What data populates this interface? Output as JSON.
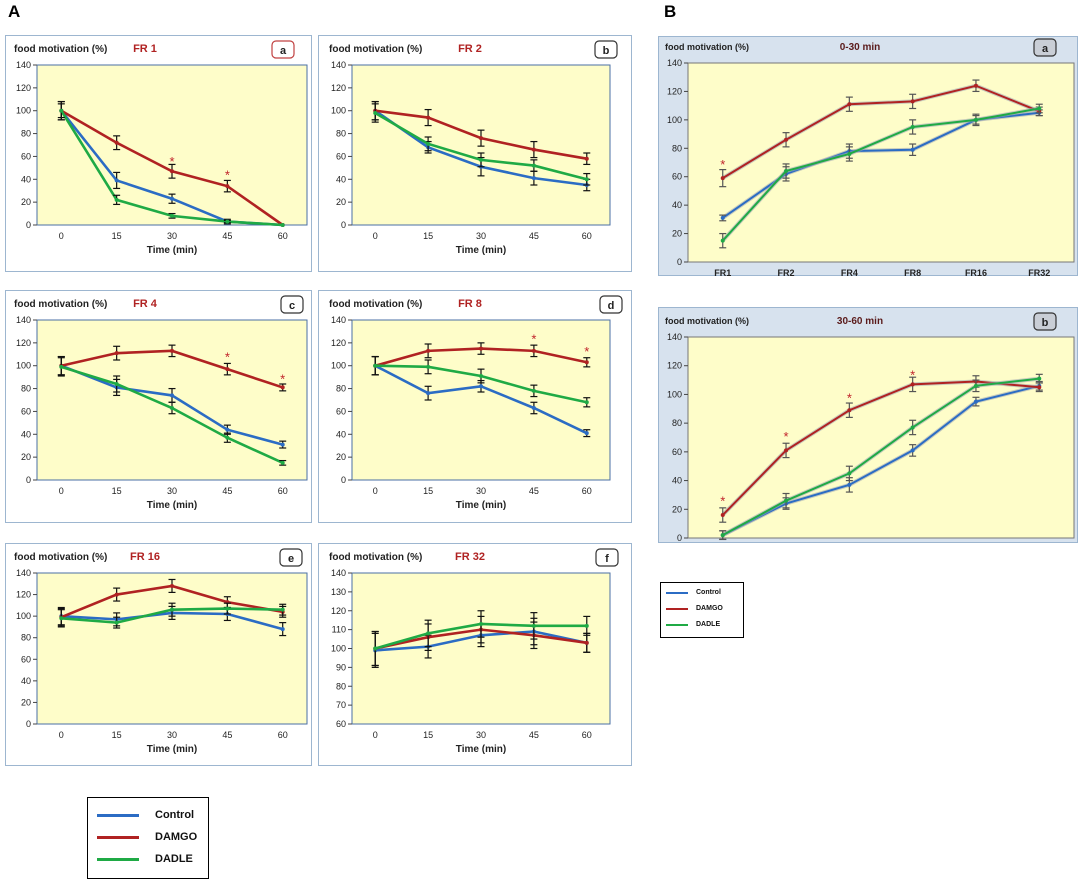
{
  "panel_labels": {
    "A": "A",
    "B": "B"
  },
  "colors": {
    "control": "#2b6cc4",
    "damgo": "#b02222",
    "dadle": "#1faa45"
  },
  "series_names": {
    "control": "Control",
    "damgo": "DAMGO",
    "dadle": "DADLE"
  },
  "legend_main": [
    "Control",
    "DAMGO",
    "DADLE"
  ],
  "legend_small": [
    "Control",
    "DAMGO",
    "DADLE"
  ],
  "chart_data": [
    {
      "id": "A-a",
      "type": "line",
      "title": "FR 1",
      "ylabel": "food motivation (%)",
      "xlabel": "Time (min)",
      "panel_letter": "a",
      "categories": [
        "0",
        "15",
        "30",
        "45",
        "60"
      ],
      "ylim": [
        0,
        140
      ],
      "yticks": [
        0,
        20,
        40,
        60,
        80,
        100,
        120,
        140
      ],
      "series": [
        {
          "name": "Control",
          "values": [
            100,
            39,
            23,
            3,
            0
          ],
          "err": [
            8,
            7,
            4,
            2,
            0
          ]
        },
        {
          "name": "DAMGO",
          "values": [
            100,
            72,
            47,
            34,
            0
          ],
          "err": [
            8,
            6,
            6,
            5,
            0
          ]
        },
        {
          "name": "DADLE",
          "values": [
            100,
            22,
            8,
            3,
            0
          ],
          "err": [
            6,
            4,
            2,
            1,
            0
          ]
        }
      ],
      "stars": [
        {
          "index": 2,
          "value": 56
        },
        {
          "index": 3,
          "value": 44
        }
      ]
    },
    {
      "id": "A-b",
      "type": "line",
      "title": "FR 2",
      "ylabel": "food motivation (%)",
      "xlabel": "Time (min)",
      "panel_letter": "b",
      "categories": [
        "0",
        "15",
        "30",
        "45",
        "60"
      ],
      "ylim": [
        0,
        140
      ],
      "yticks": [
        0,
        20,
        40,
        60,
        80,
        100,
        120,
        140
      ],
      "series": [
        {
          "name": "Control",
          "values": [
            100,
            68,
            51,
            41,
            35
          ],
          "err": [
            8,
            5,
            8,
            6,
            5
          ]
        },
        {
          "name": "DAMGO",
          "values": [
            100,
            94,
            76,
            66,
            58
          ],
          "err": [
            8,
            7,
            7,
            7,
            5
          ]
        },
        {
          "name": "DADLE",
          "values": [
            98,
            71,
            57,
            52,
            40
          ],
          "err": [
            8,
            6,
            6,
            5,
            5
          ]
        }
      ],
      "stars": []
    },
    {
      "id": "A-c",
      "type": "line",
      "title": "FR 4",
      "ylabel": "food motivation (%)",
      "xlabel": "Time (min)",
      "panel_letter": "c",
      "categories": [
        "0",
        "15",
        "30",
        "45",
        "60"
      ],
      "ylim": [
        0,
        140
      ],
      "yticks": [
        0,
        20,
        40,
        60,
        80,
        100,
        120,
        140
      ],
      "series": [
        {
          "name": "Control",
          "values": [
            100,
            81,
            74,
            44,
            31
          ],
          "err": [
            8,
            7,
            6,
            4,
            3
          ]
        },
        {
          "name": "DAMGO",
          "values": [
            100,
            111,
            113,
            97,
            81
          ],
          "err": [
            8,
            6,
            5,
            5,
            3
          ]
        },
        {
          "name": "DADLE",
          "values": [
            99,
            84,
            63,
            37,
            15
          ],
          "err": [
            8,
            7,
            5,
            4,
            2
          ]
        }
      ],
      "stars": [
        {
          "index": 3,
          "value": 108
        },
        {
          "index": 4,
          "value": 89
        }
      ]
    },
    {
      "id": "A-d",
      "type": "line",
      "title": "FR 8",
      "ylabel": "food motivation (%)",
      "xlabel": "Time (min)",
      "panel_letter": "d",
      "categories": [
        "0",
        "15",
        "30",
        "45",
        "60"
      ],
      "ylim": [
        0,
        140
      ],
      "yticks": [
        0,
        20,
        40,
        60,
        80,
        100,
        120,
        140
      ],
      "series": [
        {
          "name": "Control",
          "values": [
            100,
            76,
            82,
            63,
            41
          ],
          "err": [
            8,
            6,
            5,
            5,
            3
          ]
        },
        {
          "name": "DAMGO",
          "values": [
            100,
            113,
            115,
            113,
            103
          ],
          "err": [
            8,
            6,
            5,
            5,
            4
          ]
        },
        {
          "name": "DADLE",
          "values": [
            100,
            99,
            91,
            78,
            68
          ],
          "err": [
            8,
            6,
            6,
            5,
            4
          ]
        }
      ],
      "stars": [
        {
          "index": 3,
          "value": 124
        },
        {
          "index": 4,
          "value": 113
        }
      ]
    },
    {
      "id": "A-e",
      "type": "line",
      "title": "FR 16",
      "ylabel": "food motivation (%)",
      "xlabel": "Time (min)",
      "panel_letter": "e",
      "categories": [
        "0",
        "15",
        "30",
        "45",
        "60"
      ],
      "ylim": [
        0,
        140
      ],
      "yticks": [
        0,
        20,
        40,
        60,
        80,
        100,
        120,
        140
      ],
      "series": [
        {
          "name": "Control",
          "values": [
            100,
            97,
            103,
            102,
            88
          ],
          "err": [
            8,
            6,
            6,
            6,
            6
          ]
        },
        {
          "name": "DAMGO",
          "values": [
            99,
            120,
            128,
            113,
            104
          ],
          "err": [
            8,
            6,
            6,
            5,
            5
          ]
        },
        {
          "name": "DADLE",
          "values": [
            98,
            94,
            106,
            107,
            106
          ],
          "err": [
            8,
            5,
            6,
            5,
            5
          ]
        }
      ],
      "stars": []
    },
    {
      "id": "A-f",
      "type": "line",
      "title": "FR 32",
      "ylabel": "food motivation (%)",
      "xlabel": "Time (min)",
      "panel_letter": "f",
      "categories": [
        "0",
        "15",
        "30",
        "45",
        "60"
      ],
      "ylim": [
        60,
        140
      ],
      "yticks": [
        60,
        70,
        80,
        90,
        100,
        110,
        120,
        130,
        140
      ],
      "series": [
        {
          "name": "Control",
          "values": [
            99,
            101,
            107,
            109,
            103
          ],
          "err": [
            9,
            6,
            6,
            7,
            5
          ]
        },
        {
          "name": "DAMGO",
          "values": [
            100,
            106,
            110,
            107,
            103
          ],
          "err": [
            9,
            7,
            7,
            7,
            5
          ]
        },
        {
          "name": "DADLE",
          "values": [
            100,
            108,
            113,
            112,
            112
          ],
          "err": [
            9,
            7,
            7,
            7,
            5
          ]
        }
      ],
      "stars": []
    },
    {
      "id": "B-a",
      "type": "line",
      "title": "0-30 min",
      "ylabel": "food motivation (%)",
      "xlabel": "",
      "panel_letter": "a",
      "categories": [
        "FR1",
        "FR2",
        "FR4",
        "FR8",
        "FR16",
        "FR32"
      ],
      "ylim": [
        0,
        140
      ],
      "yticks": [
        0,
        20,
        40,
        60,
        80,
        100,
        120,
        140
      ],
      "series": [
        {
          "name": "Control",
          "values": [
            31,
            62,
            78,
            79,
            100,
            105
          ],
          "err": [
            2,
            5,
            5,
            4,
            3,
            2
          ]
        },
        {
          "name": "DAMGO",
          "values": [
            59,
            86,
            111,
            113,
            124,
            106
          ],
          "err": [
            6,
            5,
            5,
            5,
            4,
            3
          ]
        },
        {
          "name": "DADLE",
          "values": [
            15,
            64,
            76,
            95,
            100,
            108
          ],
          "err": [
            5,
            5,
            5,
            5,
            4,
            3
          ]
        }
      ],
      "stars": [
        {
          "index": 0,
          "value": 69
        }
      ]
    },
    {
      "id": "B-b",
      "type": "line",
      "title": "30-60 min",
      "ylabel": "food motivation (%)",
      "xlabel": "",
      "panel_letter": "b",
      "categories": [
        "FR1",
        "FR2",
        "FR4",
        "FR8",
        "FR16",
        "FR32"
      ],
      "ylim": [
        0,
        140
      ],
      "yticks": [
        0,
        20,
        40,
        60,
        80,
        100,
        120,
        140
      ],
      "series": [
        {
          "name": "Control",
          "values": [
            2,
            24,
            37,
            61,
            95,
            106
          ],
          "err": [
            3,
            4,
            5,
            4,
            3,
            3
          ]
        },
        {
          "name": "DAMGO",
          "values": [
            16,
            61,
            89,
            107,
            109,
            105
          ],
          "err": [
            5,
            5,
            5,
            5,
            4,
            3
          ]
        },
        {
          "name": "DADLE",
          "values": [
            2,
            26,
            45,
            77,
            106,
            111
          ],
          "err": [
            3,
            5,
            5,
            5,
            4,
            3
          ]
        }
      ],
      "stars": [
        {
          "index": 0,
          "value": 26
        },
        {
          "index": 1,
          "value": 71
        },
        {
          "index": 2,
          "value": 98
        },
        {
          "index": 3,
          "value": 114
        }
      ]
    }
  ]
}
